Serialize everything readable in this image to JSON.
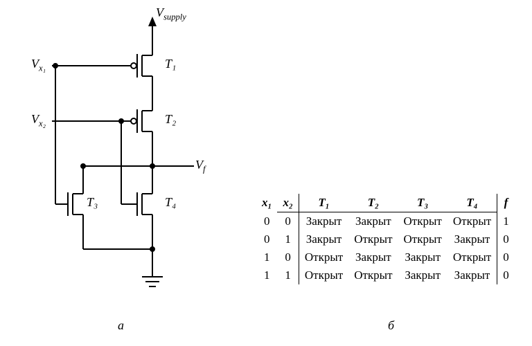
{
  "circuit": {
    "supply_label": "V",
    "supply_sub": "supply",
    "vx1": "V",
    "vx1_sub": "x₁",
    "vx2": "V",
    "vx2_sub": "x₂",
    "vf": "V",
    "vf_sub": "f",
    "t1": "T₁",
    "t2": "T₂",
    "t3": "T₃",
    "t4": "T₄",
    "fig_a": "а",
    "fig_b": "б",
    "colors": {
      "stroke": "#000000",
      "bg": "#ffffff"
    },
    "stroke_width": 2
  },
  "table": {
    "headers": {
      "x1": "x₁",
      "x2": "x₂",
      "t1": "T₁",
      "t2": "T₂",
      "t3": "T₃",
      "t4": "T₄",
      "f": "f"
    },
    "rows": [
      {
        "x1": "0",
        "x2": "0",
        "t1": "Закрыт",
        "t2": "Закрыт",
        "t3": "Открыт",
        "t4": "Открыт",
        "f": "1"
      },
      {
        "x1": "0",
        "x2": "1",
        "t1": "Закрыт",
        "t2": "Открыт",
        "t3": "Открыт",
        "t4": "Закрыт",
        "f": "0"
      },
      {
        "x1": "1",
        "x2": "0",
        "t1": "Открыт",
        "t2": "Закрыт",
        "t3": "Закрыт",
        "t4": "Открыт",
        "f": "0"
      },
      {
        "x1": "1",
        "x2": "1",
        "t1": "Открыт",
        "t2": "Открыт",
        "t3": "Закрыт",
        "t4": "Закрыт",
        "f": "0"
      }
    ]
  }
}
